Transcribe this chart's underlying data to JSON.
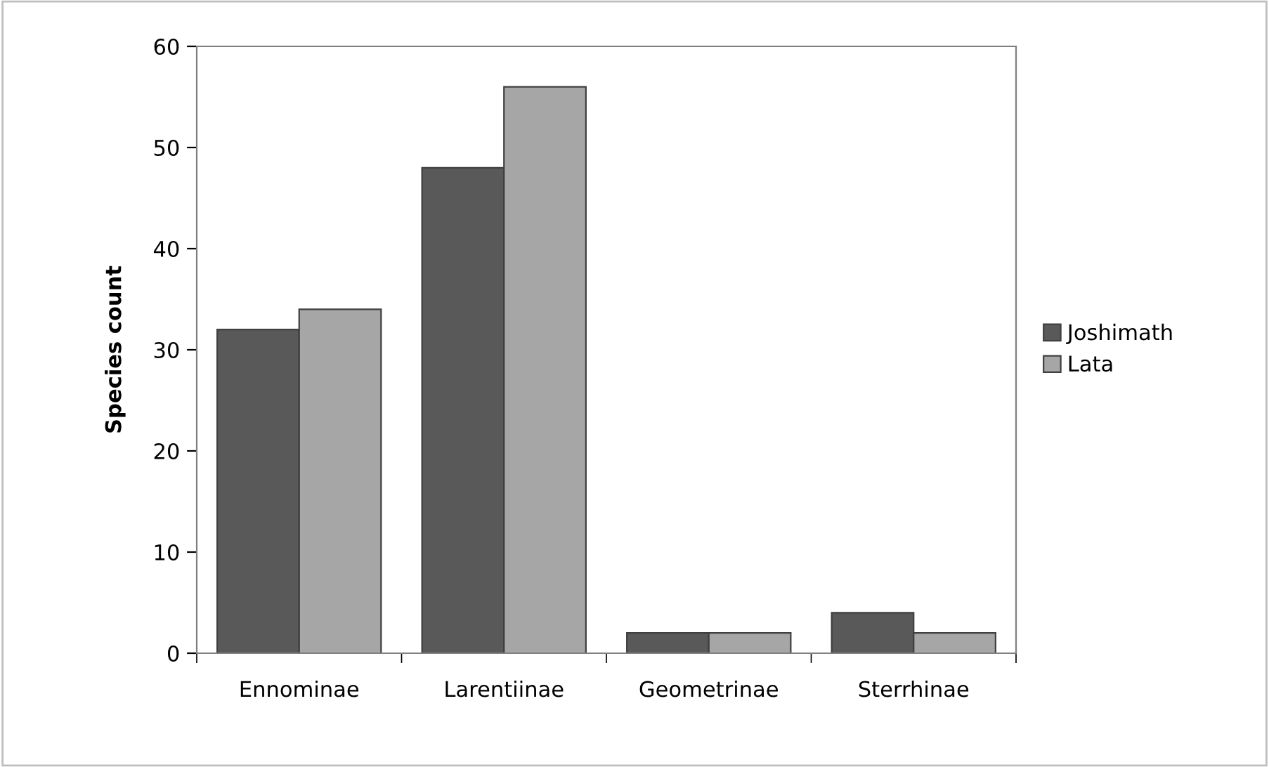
{
  "chart_data": {
    "type": "bar",
    "ylabel": "Species count",
    "categories": [
      "Ennominae",
      "Larentiinae",
      "Geometrinae",
      "Sterrhinae"
    ],
    "series": [
      {
        "name": "Joshimath",
        "color": "#595959",
        "values": [
          32,
          48,
          2,
          4
        ]
      },
      {
        "name": "Lata",
        "color": "#a6a6a6",
        "values": [
          34,
          56,
          2,
          2
        ]
      }
    ],
    "ylim": [
      0,
      60
    ],
    "yticks": [
      0,
      10,
      20,
      30,
      40,
      50,
      60
    ],
    "grid": false,
    "legend": "right"
  }
}
